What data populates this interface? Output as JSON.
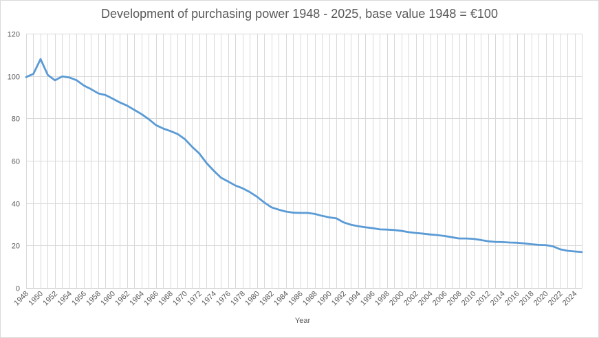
{
  "chart_data": {
    "type": "line",
    "title": "Development of purchasing power 1948 - 2025, base value 1948 = €100",
    "xlabel": "Year",
    "ylabel": "",
    "ylim": [
      0,
      120
    ],
    "yticks": [
      "0",
      "20",
      "40",
      "60",
      "80",
      "100",
      "120"
    ],
    "grid": true,
    "legend": "none",
    "colors": {
      "line": "#5b9bd5",
      "grid": "#d9d9d9",
      "axis": "#bfbfbf",
      "text": "#595959"
    },
    "x_tick_labels": [
      "1948",
      "1950",
      "1952",
      "1954",
      "1956",
      "1958",
      "1960",
      "1962",
      "1964",
      "1966",
      "1968",
      "1970",
      "1972",
      "1974",
      "1976",
      "1978",
      "1980",
      "1982",
      "1984",
      "1986",
      "1988",
      "1990",
      "1992",
      "1994",
      "1996",
      "1998",
      "2000",
      "2002",
      "2004",
      "2006",
      "2008",
      "2010",
      "2012",
      "2014",
      "2016",
      "2018",
      "2020",
      "2022",
      "2024"
    ],
    "series": [
      {
        "name": "Purchasing power",
        "x": [
          1948,
          1949,
          1950,
          1951,
          1952,
          1953,
          1954,
          1955,
          1956,
          1957,
          1958,
          1959,
          1960,
          1961,
          1962,
          1963,
          1964,
          1965,
          1966,
          1967,
          1968,
          1969,
          1970,
          1971,
          1972,
          1973,
          1974,
          1975,
          1976,
          1977,
          1978,
          1979,
          1980,
          1981,
          1982,
          1983,
          1984,
          1985,
          1986,
          1987,
          1988,
          1989,
          1990,
          1991,
          1992,
          1993,
          1994,
          1995,
          1996,
          1997,
          1998,
          1999,
          2000,
          2001,
          2002,
          2003,
          2004,
          2005,
          2006,
          2007,
          2008,
          2009,
          2010,
          2011,
          2012,
          2013,
          2014,
          2015,
          2016,
          2017,
          2018,
          2019,
          2020,
          2021,
          2022,
          2023,
          2024,
          2025
        ],
        "values": [
          99.5,
          101,
          108,
          100.5,
          98,
          99.8,
          99.3,
          98,
          95.5,
          93.8,
          91.8,
          91,
          89.3,
          87.5,
          86,
          84,
          82,
          79.6,
          76.8,
          75.2,
          74,
          72.6,
          70.2,
          66.6,
          63.4,
          58.9,
          55.3,
          52,
          50.2,
          48.3,
          47,
          45.2,
          43,
          40.3,
          38,
          36.9,
          36,
          35.5,
          35.4,
          35.4,
          34.9,
          34,
          33.3,
          32.8,
          30.9,
          29.8,
          29.1,
          28.6,
          28.2,
          27.6,
          27.5,
          27.3,
          26.9,
          26.3,
          25.9,
          25.6,
          25.2,
          24.9,
          24.5,
          23.9,
          23.3,
          23.3,
          23.1,
          22.6,
          22,
          21.7,
          21.6,
          21.4,
          21.3,
          21,
          20.6,
          20.3,
          20.2,
          19.6,
          18.2,
          17.5,
          17.2,
          16.9
        ]
      }
    ]
  }
}
